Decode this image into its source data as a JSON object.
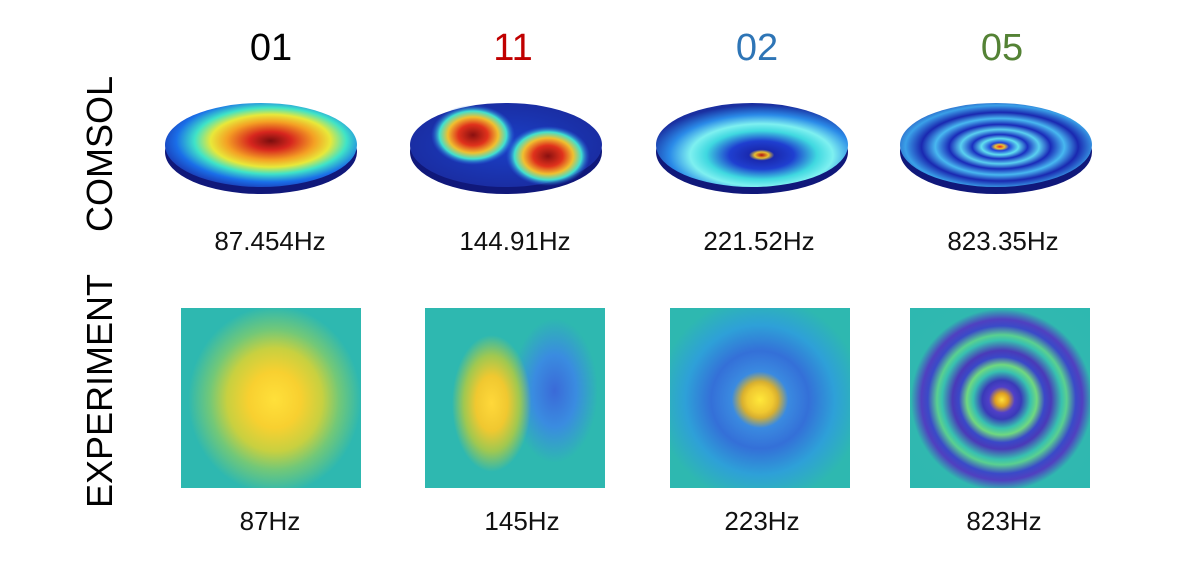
{
  "modes": [
    {
      "label": "01",
      "color": "#000000",
      "comsol_freq": "87.454Hz",
      "exp_freq": "87Hz",
      "icon": "mode-01-pattern"
    },
    {
      "label": "11",
      "color": "#c00000",
      "comsol_freq": "144.91Hz",
      "exp_freq": "145Hz",
      "icon": "mode-11-pattern"
    },
    {
      "label": "02",
      "color": "#2e75b6",
      "comsol_freq": "221.52Hz",
      "exp_freq": "223Hz",
      "icon": "mode-02-pattern"
    },
    {
      "label": "05",
      "color": "#548235",
      "comsol_freq": "823.35Hz",
      "exp_freq": "823Hz",
      "icon": "mode-05-pattern"
    }
  ],
  "rows": {
    "comsol_label": "COMSOL",
    "experiment_label": "EXPERIMENT"
  }
}
